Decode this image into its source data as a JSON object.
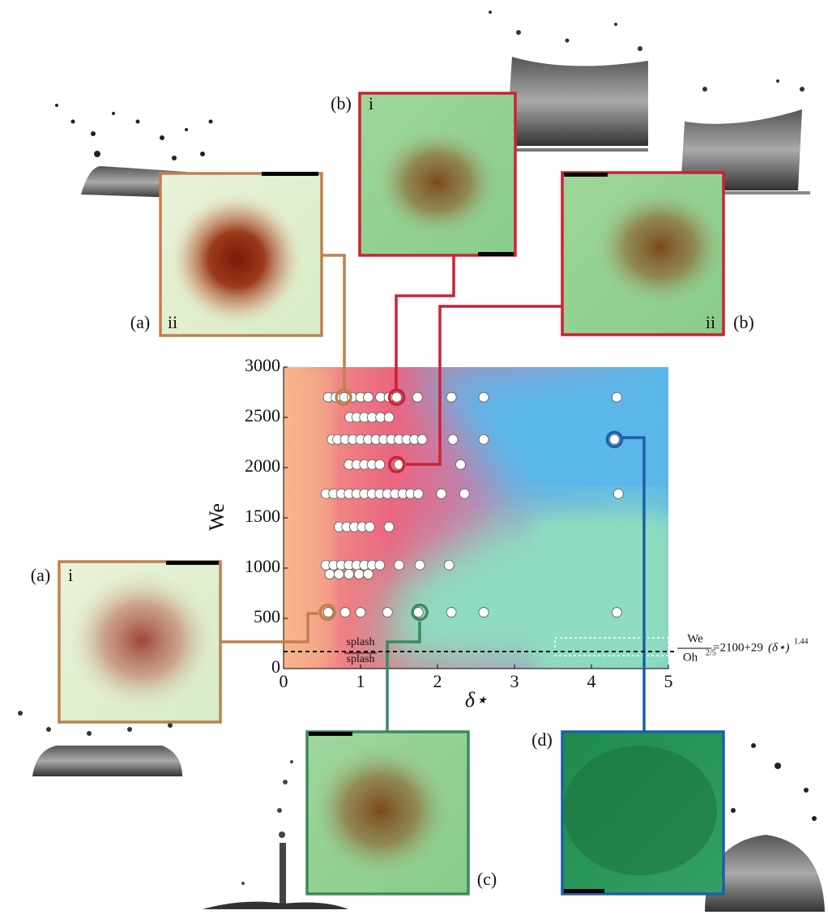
{
  "chart_data": {
    "type": "scatter",
    "x_label": "δ⋆",
    "y_label": "We",
    "xlim": [
      0,
      5
    ],
    "ylim": [
      0,
      3000
    ],
    "xticks": [
      0,
      1,
      2,
      3,
      4,
      5
    ],
    "yticks": [
      0,
      500,
      1000,
      1500,
      2000,
      2500,
      3000
    ],
    "series": [
      {
        "color": "#ffffff",
        "x": [
          0.58,
          0.68,
          0.79,
          0.89,
          1.0,
          1.1,
          1.26,
          1.37,
          1.47,
          1.74,
          2.18,
          2.6,
          4.33,
          0.86,
          0.95,
          1.05,
          1.15,
          1.26,
          1.37,
          0.63,
          0.7,
          0.8,
          0.9,
          1.0,
          1.1,
          1.2,
          1.3,
          1.4,
          1.5,
          1.6,
          1.7,
          1.8,
          2.2,
          2.6,
          4.3,
          0.85,
          0.95,
          1.05,
          1.15,
          1.25,
          1.5,
          2.3,
          0.55,
          0.65,
          0.75,
          0.85,
          0.95,
          1.05,
          1.15,
          1.25,
          1.35,
          1.45,
          1.55,
          1.65,
          1.75,
          2.05,
          2.35,
          4.35,
          0.72,
          0.82,
          0.92,
          1.02,
          1.12,
          1.37,
          0.55,
          0.65,
          0.75,
          0.85,
          0.95,
          1.05,
          1.15,
          1.25,
          1.5,
          1.77,
          2.15,
          0.6,
          0.72,
          0.85,
          0.98,
          1.1,
          0.58,
          0.8,
          1.0,
          1.35,
          1.75,
          2.18,
          2.6,
          4.33
        ],
        "y": [
          2700,
          2700,
          2700,
          2700,
          2700,
          2700,
          2700,
          2700,
          2700,
          2700,
          2700,
          2700,
          2700,
          2500,
          2500,
          2500,
          2500,
          2500,
          2500,
          2280,
          2280,
          2280,
          2280,
          2280,
          2280,
          2280,
          2280,
          2280,
          2280,
          2280,
          2280,
          2280,
          2280,
          2280,
          2280,
          2030,
          2030,
          2030,
          2030,
          2030,
          2030,
          2030,
          1740,
          1740,
          1740,
          1740,
          1740,
          1740,
          1740,
          1740,
          1740,
          1740,
          1740,
          1740,
          1740,
          1740,
          1740,
          1740,
          1410,
          1410,
          1410,
          1410,
          1410,
          1410,
          1030,
          1030,
          1030,
          1030,
          1030,
          1030,
          1030,
          1030,
          1030,
          1030,
          1030,
          940,
          940,
          940,
          940,
          940,
          560,
          560,
          560,
          560,
          560,
          560,
          560,
          560
        ]
      }
    ],
    "highlighted": [
      {
        "x": 0.78,
        "y": 2700,
        "color": "#c0804f"
      },
      {
        "x": 1.47,
        "y": 2700,
        "color": "#cc2233"
      },
      {
        "x": 1.47,
        "y": 2030,
        "color": "#cc2233"
      },
      {
        "x": 4.3,
        "y": 2280,
        "color": "#1c5fa8"
      },
      {
        "x": 0.57,
        "y": 560,
        "color": "#c0804f"
      },
      {
        "x": 1.77,
        "y": 560,
        "color": "#3a8a5e"
      }
    ],
    "threshold": {
      "y": 170,
      "label_above": "splash",
      "label_below": "splash",
      "eq_numerator": "We",
      "eq_denominator": "Oh",
      "eq_denominator_exp": "2/5",
      "eq_rhs": "=2100+29",
      "eq_base": "(δ⋆)",
      "eq_exp": "1.44"
    }
  },
  "panels": [
    {
      "label": "(a)",
      "sublabel": "ii"
    },
    {
      "label": "(b)",
      "sublabel": "i"
    },
    {
      "label": "(b)",
      "sublabel": "ii"
    },
    {
      "label": "(a)",
      "sublabel": "i"
    },
    {
      "label": "(c)"
    },
    {
      "label": "(d)"
    }
  ]
}
